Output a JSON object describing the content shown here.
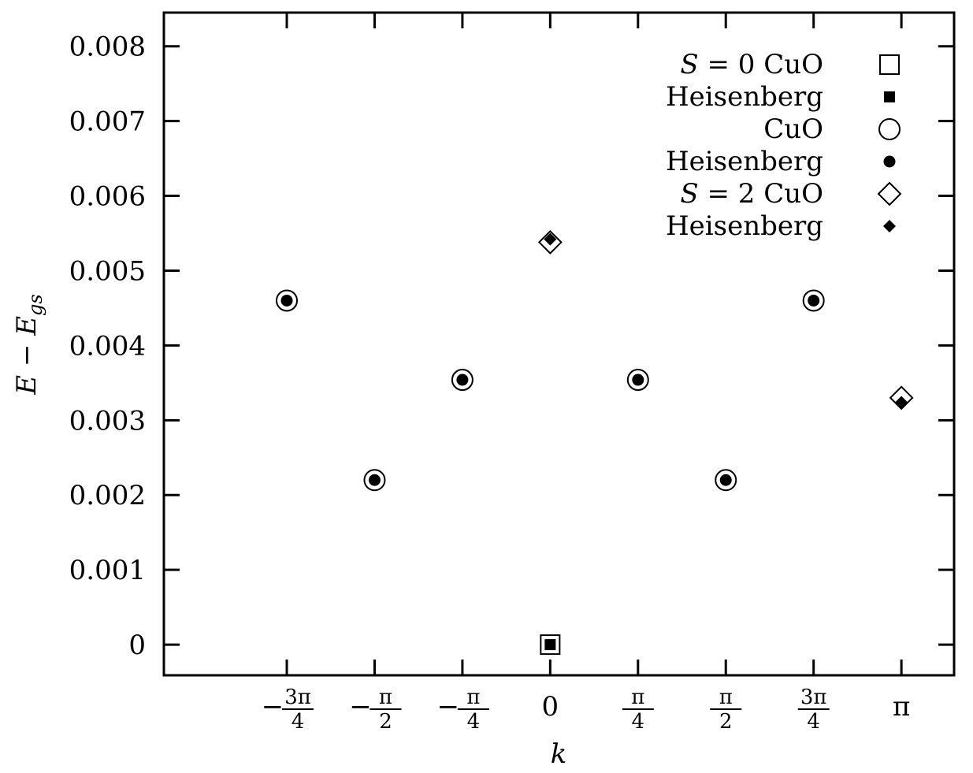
{
  "chart_data": {
    "type": "scatter",
    "title": "",
    "xlabel": "k",
    "ylabel": "E − E_gs",
    "ylim": [
      -0.00041,
      0.00845
    ],
    "xlim": [
      -1.1,
      1.15
    ],
    "yticks": [
      {
        "value": 0,
        "label": "0"
      },
      {
        "value": 0.001,
        "label": "0.001"
      },
      {
        "value": 0.002,
        "label": "0.002"
      },
      {
        "value": 0.003,
        "label": "0.003"
      },
      {
        "value": 0.004,
        "label": "0.004"
      },
      {
        "value": 0.005,
        "label": "0.005"
      },
      {
        "value": 0.006,
        "label": "0.006"
      },
      {
        "value": 0.007,
        "label": "0.007"
      },
      {
        "value": 0.008,
        "label": "0.008"
      }
    ],
    "xticks": [
      {
        "value": -0.75,
        "sign": "−",
        "num": "3π",
        "den": "4",
        "label": "−3π/4"
      },
      {
        "value": -0.5,
        "sign": "−",
        "num": "π",
        "den": "2",
        "label": "−π/2"
      },
      {
        "value": -0.25,
        "sign": "−",
        "num": "π",
        "den": "4",
        "label": "−π/4"
      },
      {
        "value": 0,
        "plain": "0",
        "label": "0"
      },
      {
        "value": 0.25,
        "sign": "",
        "num": "π",
        "den": "4",
        "label": "π/4"
      },
      {
        "value": 0.5,
        "sign": "",
        "num": "π",
        "den": "2",
        "label": "π/2"
      },
      {
        "value": 0.75,
        "sign": "",
        "num": "3π",
        "den": "4",
        "label": "3π/4"
      },
      {
        "value": 1,
        "plain": "π",
        "label": "π"
      }
    ],
    "x_units": "multiples of π",
    "grid": false,
    "legend_position": "top-right",
    "series": [
      {
        "name": "S = 0 CuO",
        "marker": "open-square",
        "points": [
          [
            0,
            0.0
          ]
        ]
      },
      {
        "name": "Heisenberg",
        "marker": "filled-square",
        "points": [
          [
            0,
            0.0
          ]
        ]
      },
      {
        "name": "CuO",
        "marker": "open-circle",
        "points": [
          [
            -0.75,
            0.0046
          ],
          [
            -0.5,
            0.0022
          ],
          [
            -0.25,
            0.00354
          ],
          [
            0.25,
            0.00354
          ],
          [
            0.5,
            0.0022
          ],
          [
            0.75,
            0.0046
          ]
        ]
      },
      {
        "name": "Heisenberg",
        "marker": "filled-circle",
        "points": [
          [
            -0.75,
            0.0046
          ],
          [
            -0.5,
            0.0022
          ],
          [
            -0.25,
            0.00354
          ],
          [
            0.25,
            0.00354
          ],
          [
            0.5,
            0.0022
          ],
          [
            0.75,
            0.0046
          ]
        ]
      },
      {
        "name": "S = 2 CuO",
        "marker": "open-diamond",
        "points": [
          [
            0,
            0.00538
          ],
          [
            1,
            0.0033
          ]
        ]
      },
      {
        "name": "Heisenberg",
        "marker": "filled-diamond",
        "points": [
          [
            0,
            0.00542
          ],
          [
            1,
            0.00324
          ]
        ]
      }
    ],
    "legend_entries": [
      {
        "prefix": "S",
        "mid": " = 0 CuO"
      },
      {
        "prefix": "",
        "mid": "Heisenberg"
      },
      {
        "prefix": "",
        "mid": "CuO"
      },
      {
        "prefix": "",
        "mid": "Heisenberg"
      },
      {
        "prefix": "S",
        "mid": " = 2 CuO"
      },
      {
        "prefix": "",
        "mid": "Heisenberg"
      }
    ]
  }
}
